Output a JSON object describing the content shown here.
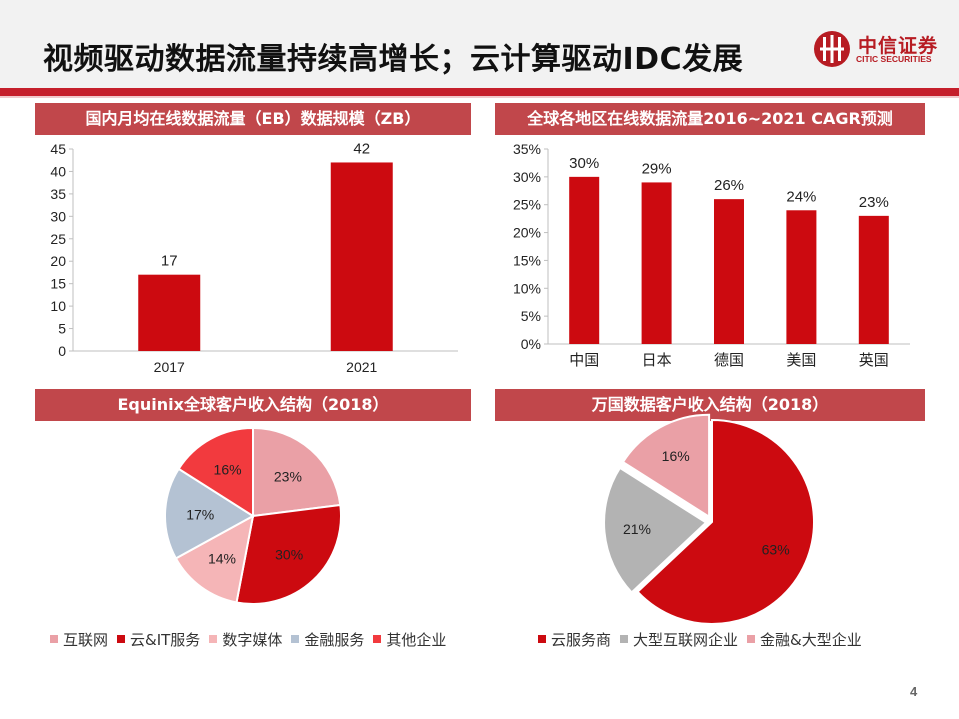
{
  "page": {
    "title": "视频驱动数据流量持续高增长；云计算驱动IDC发展",
    "page_number": "4"
  },
  "logo": {
    "cn": "中信证券",
    "en": "CITIC SECURITIES"
  },
  "colors": {
    "brand_red": "#c51f2b",
    "panel_title_bg": "#c1474b",
    "bar_red": "#cc0a10"
  },
  "panels": {
    "p1_title": "国内月均在线数据流量（EB）数据规模（ZB）",
    "p2_title": "全球各地区在线数据流量2016~2021 CAGR预测",
    "p3_title": "Equinix全球客户收入结构（2018）",
    "p4_title": "万国数据客户收入结构（2018）"
  },
  "chart_data": [
    {
      "type": "bar",
      "title": "国内月均在线数据流量（EB）数据规模（ZB）",
      "categories": [
        "2017",
        "2021"
      ],
      "values": [
        17,
        42
      ],
      "data_labels": [
        "17",
        "42"
      ],
      "ylim": [
        0,
        45
      ],
      "yticks": [
        0,
        5,
        10,
        15,
        20,
        25,
        30,
        35,
        40,
        45
      ],
      "ytick_labels": [
        "0",
        "5",
        "10",
        "15",
        "20",
        "25",
        "30",
        "35",
        "40",
        "45"
      ],
      "grid": false,
      "color": "#cc0a10"
    },
    {
      "type": "bar",
      "title": "全球各地区在线数据流量2016~2021 CAGR预测",
      "categories": [
        "中国",
        "日本",
        "德国",
        "美国",
        "英国"
      ],
      "values": [
        30,
        29,
        26,
        24,
        23
      ],
      "data_labels": [
        "30%",
        "29%",
        "26%",
        "24%",
        "23%"
      ],
      "ylim": [
        0,
        35
      ],
      "yticks": [
        0,
        5,
        10,
        15,
        20,
        25,
        30,
        35
      ],
      "ytick_labels": [
        "0%",
        "5%",
        "10%",
        "15%",
        "20%",
        "25%",
        "30%",
        "35%"
      ],
      "grid": false,
      "color": "#cc0a10"
    },
    {
      "type": "pie",
      "title": "Equinix全球客户收入结构（2018）",
      "slices": [
        {
          "label": "互联网",
          "value": 23,
          "text": "23%",
          "color": "#eaa0a6"
        },
        {
          "label": "云&IT服务",
          "value": 30,
          "text": "30%",
          "color": "#cc0a10"
        },
        {
          "label": "数字媒体",
          "value": 14,
          "text": "14%",
          "color": "#f5b5b7"
        },
        {
          "label": "金融服务",
          "value": 17,
          "text": "17%",
          "color": "#b4c2d3"
        },
        {
          "label": "其他企业",
          "value": 16,
          "text": "16%",
          "color": "#f23a3e"
        }
      ],
      "legend_position": "bottom"
    },
    {
      "type": "pie",
      "title": "万国数据客户收入结构（2018）",
      "slices": [
        {
          "label": "云服务商",
          "value": 63,
          "text": "63%",
          "color": "#cc0a10"
        },
        {
          "label": "大型互联网企业",
          "value": 21,
          "text": "21%",
          "color": "#b3b3b3"
        },
        {
          "label": "金融&大型企业",
          "value": 16,
          "text": "16%",
          "color": "#eaa0a6"
        }
      ],
      "legend_position": "bottom"
    }
  ]
}
